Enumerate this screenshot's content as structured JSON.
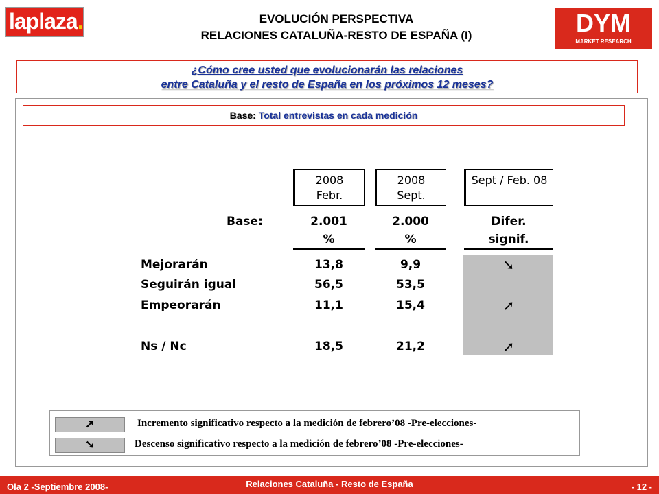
{
  "header": {
    "logo_left": {
      "part1": "la",
      "part2": "plaza",
      "dot": "."
    },
    "title_lines": [
      "EVOLUCIÓN PERSPECTIVA",
      "RELACIONES CATALUÑA-RESTO DE ESPAÑA (I)"
    ],
    "logo_right": {
      "name": "DYM",
      "tagline": "MARKET RESEARCH"
    }
  },
  "question": [
    "¿Cómo cree usted que evolucionarán las relaciones",
    "entre Cataluña y el resto de España en los próximos 12 meses?"
  ],
  "base": {
    "label": "Base:",
    "text": "Total entrevistas en cada medición"
  },
  "table": {
    "column_headers": [
      [
        "2008",
        "Febr."
      ],
      [
        "2008",
        "Sept."
      ],
      [
        "Sept / Feb. 08"
      ]
    ],
    "base_row": {
      "label": "Base:",
      "cells": [
        "2.001",
        "2.000",
        "Difer."
      ]
    },
    "unit_row": [
      "%",
      "%",
      "signif."
    ],
    "rows": [
      {
        "label": "Mejorarán",
        "cells": [
          "13,8",
          "9,9"
        ],
        "signif": "➘"
      },
      {
        "label": "Seguirán igual",
        "cells": [
          "56,5",
          "53,5"
        ],
        "signif": null
      },
      {
        "label": "Empeorarán",
        "cells": [
          "11,1",
          "15,4"
        ],
        "signif": "➚"
      },
      {
        "label": "Ns / Nc",
        "cells": [
          "18,5",
          "21,2"
        ],
        "signif": "➚"
      }
    ]
  },
  "legend": [
    {
      "icon": "➚",
      "text": "Incremento significativo respecto a la medición de febrero’08 -Pre-elecciones-"
    },
    {
      "icon": "➘",
      "text": "Descenso significativo respecto a la medición de febrero’08 -Pre-elecciones-"
    }
  ],
  "footer": {
    "left": "Ola 2 -Septiembre 2008-",
    "center": "Relaciones Cataluña - Resto de España",
    "right": "- 12 -"
  }
}
